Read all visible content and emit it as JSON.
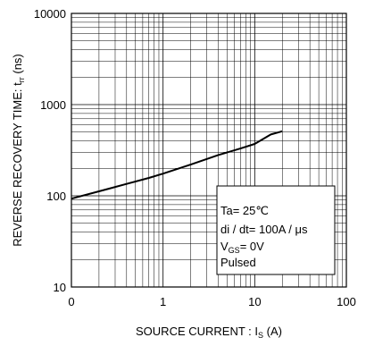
{
  "chart_data": {
    "type": "line",
    "xscale": "log",
    "yscale": "log",
    "xlim": [
      0.1,
      100
    ],
    "ylim": [
      10,
      10000
    ],
    "x_ticks": [
      "0",
      "1",
      "10",
      "100"
    ],
    "y_ticks": [
      "10",
      "100",
      "1000",
      "10000"
    ],
    "xlabel": {
      "main": "SOURCE CURRENT : I",
      "sub": "S",
      "unit": " (A)"
    },
    "ylabel": {
      "main": "REVERSE RECOVERY TIME: t",
      "sub": "rr",
      "unit": " (ns)"
    },
    "grid": true,
    "legend_position": "bottom-right",
    "conditions": {
      "line1": "Ta= 25℃",
      "line2": "di / dt= 100A / μs",
      "line3_main": "V",
      "line3_sub": "GS",
      "line3_rest": "= 0V",
      "line4": "Pulsed"
    },
    "series": [
      {
        "x": [
          0.1,
          0.2,
          0.4,
          0.7,
          1,
          2,
          4,
          7,
          10,
          15,
          20
        ],
        "y": [
          93,
          112,
          135,
          157,
          175,
          220,
          280,
          330,
          370,
          470,
          510
        ]
      }
    ]
  }
}
